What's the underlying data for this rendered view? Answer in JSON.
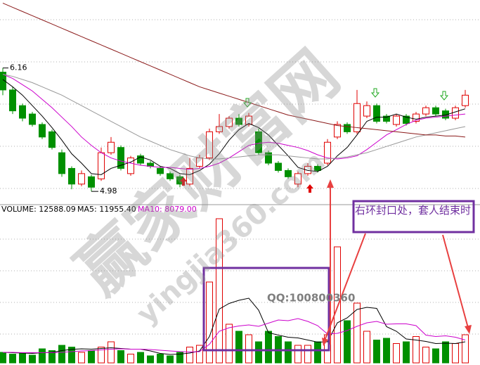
{
  "chart_data": [
    {
      "type": "candlestick",
      "open": [
        6.12,
        5.95,
        5.8,
        5.72,
        5.62,
        5.55,
        5.35,
        5.2,
        5.05,
        5.12,
        5.1,
        5.35,
        5.4,
        5.15,
        5.32,
        5.25,
        5.2,
        5.15,
        5.12,
        5.05,
        5.22,
        5.3,
        5.55,
        5.6,
        5.68,
        5.62,
        5.55,
        5.35,
        5.25,
        5.18,
        5.05,
        5.15,
        5.22,
        5.25,
        5.5,
        5.62,
        5.55,
        5.7,
        5.8,
        5.7,
        5.62,
        5.7,
        5.65,
        5.72,
        5.78,
        5.75,
        5.68,
        5.8
      ],
      "high": [
        6.16,
        5.98,
        5.82,
        5.74,
        5.64,
        5.57,
        5.38,
        5.22,
        5.18,
        5.14,
        5.4,
        5.5,
        5.42,
        5.32,
        5.34,
        5.27,
        5.22,
        5.17,
        5.14,
        5.3,
        5.33,
        5.58,
        5.72,
        5.7,
        5.72,
        5.73,
        5.58,
        5.37,
        5.27,
        5.2,
        5.17,
        5.25,
        5.24,
        5.48,
        5.65,
        5.64,
        5.95,
        5.84,
        5.82,
        5.72,
        5.72,
        5.72,
        5.74,
        5.8,
        5.8,
        5.77,
        5.8,
        5.95
      ],
      "low": [
        5.9,
        5.72,
        5.65,
        5.6,
        5.48,
        5.38,
        5.12,
        5.0,
        5.03,
        4.98,
        5.08,
        5.33,
        5.18,
        5.13,
        5.23,
        5.2,
        5.13,
        5.08,
        5.02,
        5.03,
        5.2,
        5.28,
        5.53,
        5.58,
        5.6,
        5.6,
        5.33,
        5.23,
        5.16,
        5.1,
        5.02,
        5.13,
        5.16,
        5.23,
        5.48,
        5.53,
        5.53,
        5.68,
        5.63,
        5.63,
        5.6,
        5.61,
        5.63,
        5.7,
        5.7,
        5.66,
        5.66,
        5.78
      ],
      "close": [
        5.95,
        5.75,
        5.68,
        5.62,
        5.5,
        5.4,
        5.15,
        5.05,
        5.15,
        5.02,
        5.35,
        5.45,
        5.2,
        5.3,
        5.25,
        5.22,
        5.15,
        5.1,
        5.05,
        5.2,
        5.3,
        5.55,
        5.6,
        5.68,
        5.62,
        5.7,
        5.35,
        5.25,
        5.18,
        5.12,
        5.15,
        5.22,
        5.18,
        5.45,
        5.62,
        5.55,
        5.82,
        5.8,
        5.65,
        5.65,
        5.7,
        5.63,
        5.72,
        5.78,
        5.72,
        5.68,
        5.78,
        5.9
      ],
      "up_color": "#e00000",
      "down_color": "#009000",
      "series": [
        {
          "color": "#000000",
          "values": [
            6.05,
            5.98,
            5.9,
            5.8,
            5.7,
            5.59,
            5.47,
            5.34,
            5.25,
            5.15,
            5.14,
            5.2,
            5.23,
            5.26,
            5.31,
            5.28,
            5.22,
            5.2,
            5.15,
            5.14,
            5.18,
            5.24,
            5.34,
            5.47,
            5.57,
            5.63,
            5.59,
            5.52,
            5.42,
            5.32,
            5.21,
            5.18,
            5.17,
            5.22,
            5.32,
            5.4,
            5.52,
            5.65,
            5.69,
            5.69,
            5.72,
            5.69,
            5.67,
            5.69,
            5.7,
            5.71,
            5.74,
            5.77
          ]
        },
        {
          "color": "#cc00cc",
          "values": [
            6.1,
            6.06,
            6.0,
            5.94,
            5.86,
            5.78,
            5.69,
            5.6,
            5.5,
            5.42,
            5.35,
            5.3,
            5.27,
            5.25,
            5.23,
            5.22,
            5.21,
            5.21,
            5.2,
            5.19,
            5.2,
            5.22,
            5.25,
            5.3,
            5.36,
            5.42,
            5.44,
            5.45,
            5.44,
            5.42,
            5.4,
            5.37,
            5.33,
            5.3,
            5.29,
            5.3,
            5.32,
            5.38,
            5.45,
            5.52,
            5.57,
            5.62,
            5.66,
            5.68,
            5.69,
            5.7,
            5.71,
            5.72
          ]
        },
        {
          "color": "#999999",
          "values": [
            6.1,
            6.08,
            6.05,
            6.02,
            5.98,
            5.94,
            5.9,
            5.85,
            5.8,
            5.75,
            5.7,
            5.65,
            5.6,
            5.55,
            5.5,
            5.46,
            5.42,
            5.38,
            5.35,
            5.32,
            5.3,
            5.29,
            5.29,
            5.3,
            5.31,
            5.32,
            5.33,
            5.33,
            5.33,
            5.32,
            5.31,
            5.3,
            5.29,
            5.29,
            5.3,
            5.31,
            5.33,
            5.35,
            5.38,
            5.41,
            5.44,
            5.47,
            5.5,
            5.52,
            5.54,
            5.56,
            5.58,
            5.6
          ]
        },
        {
          "color": "#8b1a1a",
          "values": [
            6.78,
            6.74,
            6.7,
            6.66,
            6.62,
            6.58,
            6.54,
            6.5,
            6.46,
            6.42,
            6.38,
            6.34,
            6.3,
            6.26,
            6.22,
            6.18,
            6.14,
            6.1,
            6.06,
            6.02,
            5.98,
            5.95,
            5.92,
            5.89,
            5.86,
            5.83,
            5.8,
            5.77,
            5.74,
            5.71,
            5.69,
            5.67,
            5.65,
            5.63,
            5.61,
            5.6,
            5.59,
            5.58,
            5.57,
            5.56,
            5.55,
            5.54,
            5.53,
            5.52,
            5.52,
            5.51,
            5.51,
            5.5
          ]
        }
      ],
      "ylim": [
        4.86,
        6.81
      ],
      "annotations": [
        "6.16",
        "4.98"
      ]
    },
    {
      "type": "bar",
      "title": [
        "VOLUME: 12588.09",
        "MA5: 11955.40",
        "MA10: 8079.00"
      ],
      "values": [
        3000,
        2500,
        2800,
        2200,
        4000,
        3500,
        5000,
        4500,
        3000,
        3500,
        4500,
        6000,
        3500,
        2500,
        3000,
        2000,
        2500,
        2000,
        3000,
        4500,
        5000,
        23000,
        41000,
        11000,
        9000,
        8000,
        6000,
        9000,
        7500,
        6000,
        5000,
        5000,
        6000,
        8000,
        33000,
        12000,
        17000,
        9000,
        6500,
        7000,
        5500,
        6000,
        7500,
        4500,
        4000,
        6000,
        5500,
        8000
      ],
      "series": [
        {
          "color": "#000000",
          "values": [
            3000,
            2900,
            2800,
            2700,
            2900,
            3000,
            3500,
            3840,
            4000,
            3900,
            4100,
            4300,
            4100,
            3900,
            3900,
            3400,
            2700,
            2400,
            2500,
            2800,
            3400,
            7500,
            15300,
            16900,
            17800,
            18400,
            15000,
            8600,
            7900,
            7300,
            7100,
            6500,
            5900,
            6000,
            11400,
            12800,
            15200,
            15800,
            15500,
            10300,
            9000,
            6800,
            6500,
            6100,
            5500,
            5600,
            5500,
            6000
          ]
        },
        {
          "color": "#cc00cc",
          "values": [
            3000,
            3000,
            2900,
            2900,
            2900,
            2900,
            3000,
            3200,
            3400,
            3500,
            3700,
            3900,
            4000,
            3900,
            3900,
            3800,
            3600,
            3400,
            3200,
            3100,
            3200,
            5300,
            9000,
            10000,
            10500,
            10800,
            10400,
            11300,
            12200,
            12000,
            12600,
            11800,
            10600,
            8200,
            8400,
            9200,
            10400,
            11400,
            11800,
            11000,
            11100,
            11100,
            10600,
            7900,
            7500,
            7700,
            7300,
            6500
          ]
        }
      ],
      "ylim": [
        0,
        43600
      ]
    }
  ],
  "note": "右环封口处，套人结束时",
  "contact": "QQ:100800360",
  "watermark": [
    "赢家财富网",
    "yingjia360.com"
  ]
}
